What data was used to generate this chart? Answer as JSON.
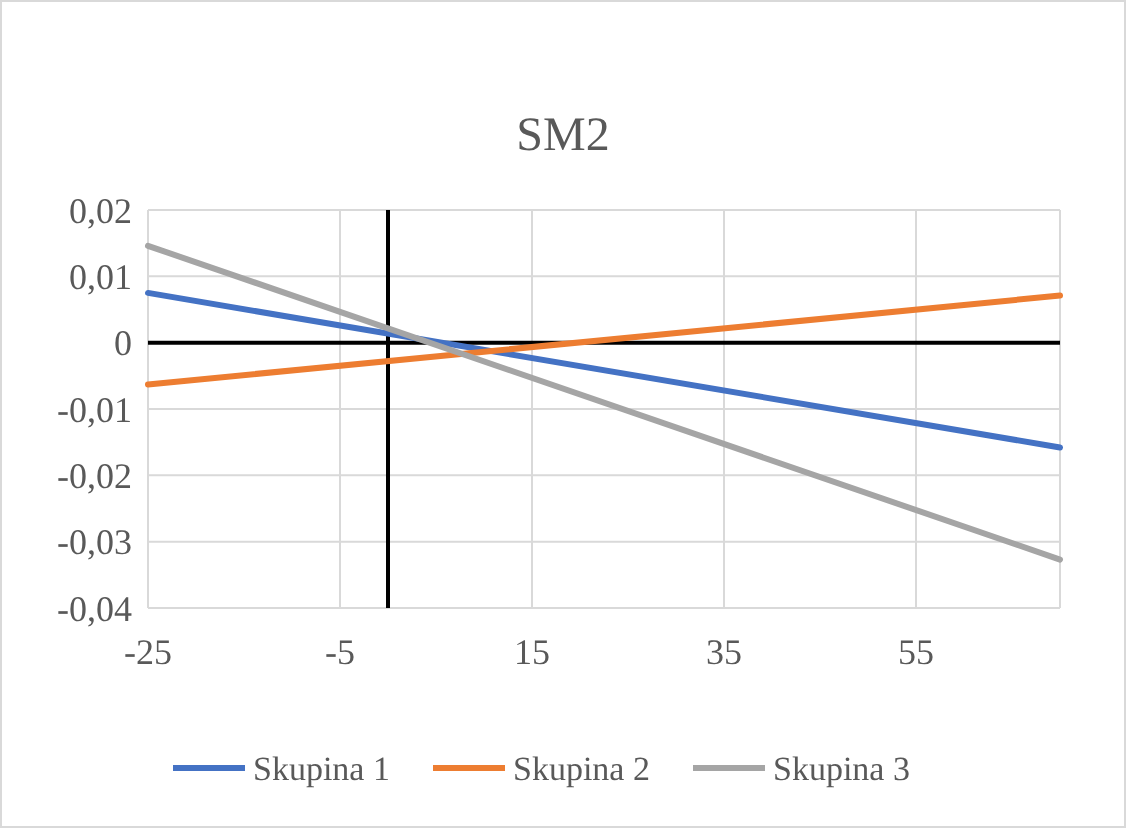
{
  "chart_data": {
    "type": "line",
    "title": "SM2",
    "x": [
      -25,
      70
    ],
    "series": [
      {
        "name": "Skupina 1",
        "color": "#4472c4",
        "values": [
          0.0075,
          -0.0158
        ]
      },
      {
        "name": "Skupina 2",
        "color": "#ed7d31",
        "values": [
          -0.0063,
          0.0071
        ]
      },
      {
        "name": "Skupina 3",
        "color": "#a5a5a5",
        "values": [
          0.0146,
          -0.0327
        ]
      }
    ],
    "xlim": [
      -25,
      70
    ],
    "xticks": [
      -25,
      -5,
      15,
      35,
      55
    ],
    "ylim": [
      -0.04,
      0.02
    ],
    "yticks": [
      {
        "value": 0.02,
        "label": "0,02"
      },
      {
        "value": 0.01,
        "label": "0,01"
      },
      0,
      {
        "value": -0.01,
        "label": "-0,01"
      },
      {
        "value": -0.02,
        "label": "-0,02"
      },
      {
        "value": -0.03,
        "label": "-0,03"
      },
      {
        "value": -0.04,
        "label": "-0,04"
      }
    ],
    "grid": true,
    "legend": "bottom",
    "marker": "none",
    "line_style": "solid"
  }
}
